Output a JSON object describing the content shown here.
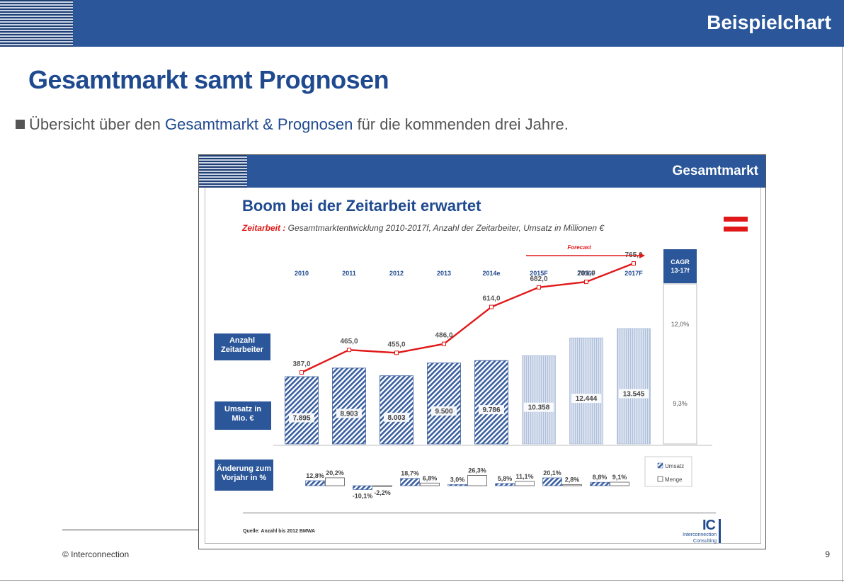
{
  "header": {
    "title": "Beispielchart"
  },
  "page_title": "Gesamtmarkt samt Prognosen",
  "bullet": {
    "pre": "Übersicht über den ",
    "highlight": "Gesamtmarkt & Prognosen",
    "post": " für die kommenden drei Jahre."
  },
  "footer": {
    "copyright": "© Interconnection",
    "page_number": "9"
  },
  "inset": {
    "bar_title": "Gesamtmarkt",
    "title": "Boom bei der Zeitarbeit erwartet",
    "subtitle_red": "Zeitarbeit :",
    "subtitle": " Gesamtmarktentwicklung  2010-2017f, Anzahl der Zeitarbeiter, Umsatz in Millionen €",
    "forecast_label": "Forecast",
    "source": "Quelle: Anzahl bis 2012 BMWA",
    "logo_letters": "IC",
    "logo_line1": "Interconnection",
    "logo_line2": "Consulting",
    "row_labels": [
      "Anzahl Zeitarbeiter",
      "Umsatz in Mio. €",
      "Änderung zum Vorjahr in %"
    ],
    "legend": [
      "Umsatz",
      "Menge"
    ],
    "cagr_header": "CAGR 13-17f",
    "cagr_values": [
      "12,0%",
      "9,3%"
    ],
    "colors": {
      "primary": "#2b579a",
      "line": "#e01818",
      "bar_hist": "#3a5fa0",
      "bar_forecast": "#c5d1e6"
    }
  },
  "chart_data": {
    "type": "bar",
    "title": "Boom bei der Zeitarbeit erwartet",
    "categories": [
      "2010",
      "2011",
      "2012",
      "2013",
      "2014e",
      "2015F",
      "2016F",
      "2017F"
    ],
    "forecast_from": "2015F",
    "series": [
      {
        "name": "Umsatz",
        "type": "bar",
        "values": [
          7895,
          8903,
          8003,
          9500,
          9786,
          10358,
          12444,
          13545
        ],
        "labels": [
          "7.895",
          "8.903",
          "8.003",
          "9.500",
          "9.786",
          "10.358",
          "12.444",
          "13.545"
        ]
      },
      {
        "name": "Anzahl Zeitarbeiter",
        "type": "line",
        "values": [
          387.0,
          465.0,
          455.0,
          486.0,
          614.0,
          682.0,
          701.0,
          765.0
        ],
        "labels": [
          "387,0",
          "465,0",
          "455,0",
          "486,0",
          "614,0",
          "682,0",
          "701,0",
          "765,0"
        ]
      }
    ],
    "change": {
      "umsatz": [
        12.8,
        -10.1,
        18.7,
        3.0,
        5.8,
        20.1,
        8.8
      ],
      "umsatz_labels": [
        "12,8%",
        "-10,1%",
        "18,7%",
        "3,0%",
        "5,8%",
        "20,1%",
        "8,8%"
      ],
      "menge": [
        20.2,
        -2.2,
        6.8,
        26.3,
        11.1,
        2.8,
        9.1
      ],
      "menge_labels": [
        "20,2%",
        "-2,2%",
        "6,8%",
        "26,3%",
        "11,1%",
        "2,8%",
        "9,1%"
      ]
    },
    "cagr": {
      "label": "CAGR 13-17f",
      "menge": "12,0%",
      "umsatz": "9,3%"
    }
  }
}
